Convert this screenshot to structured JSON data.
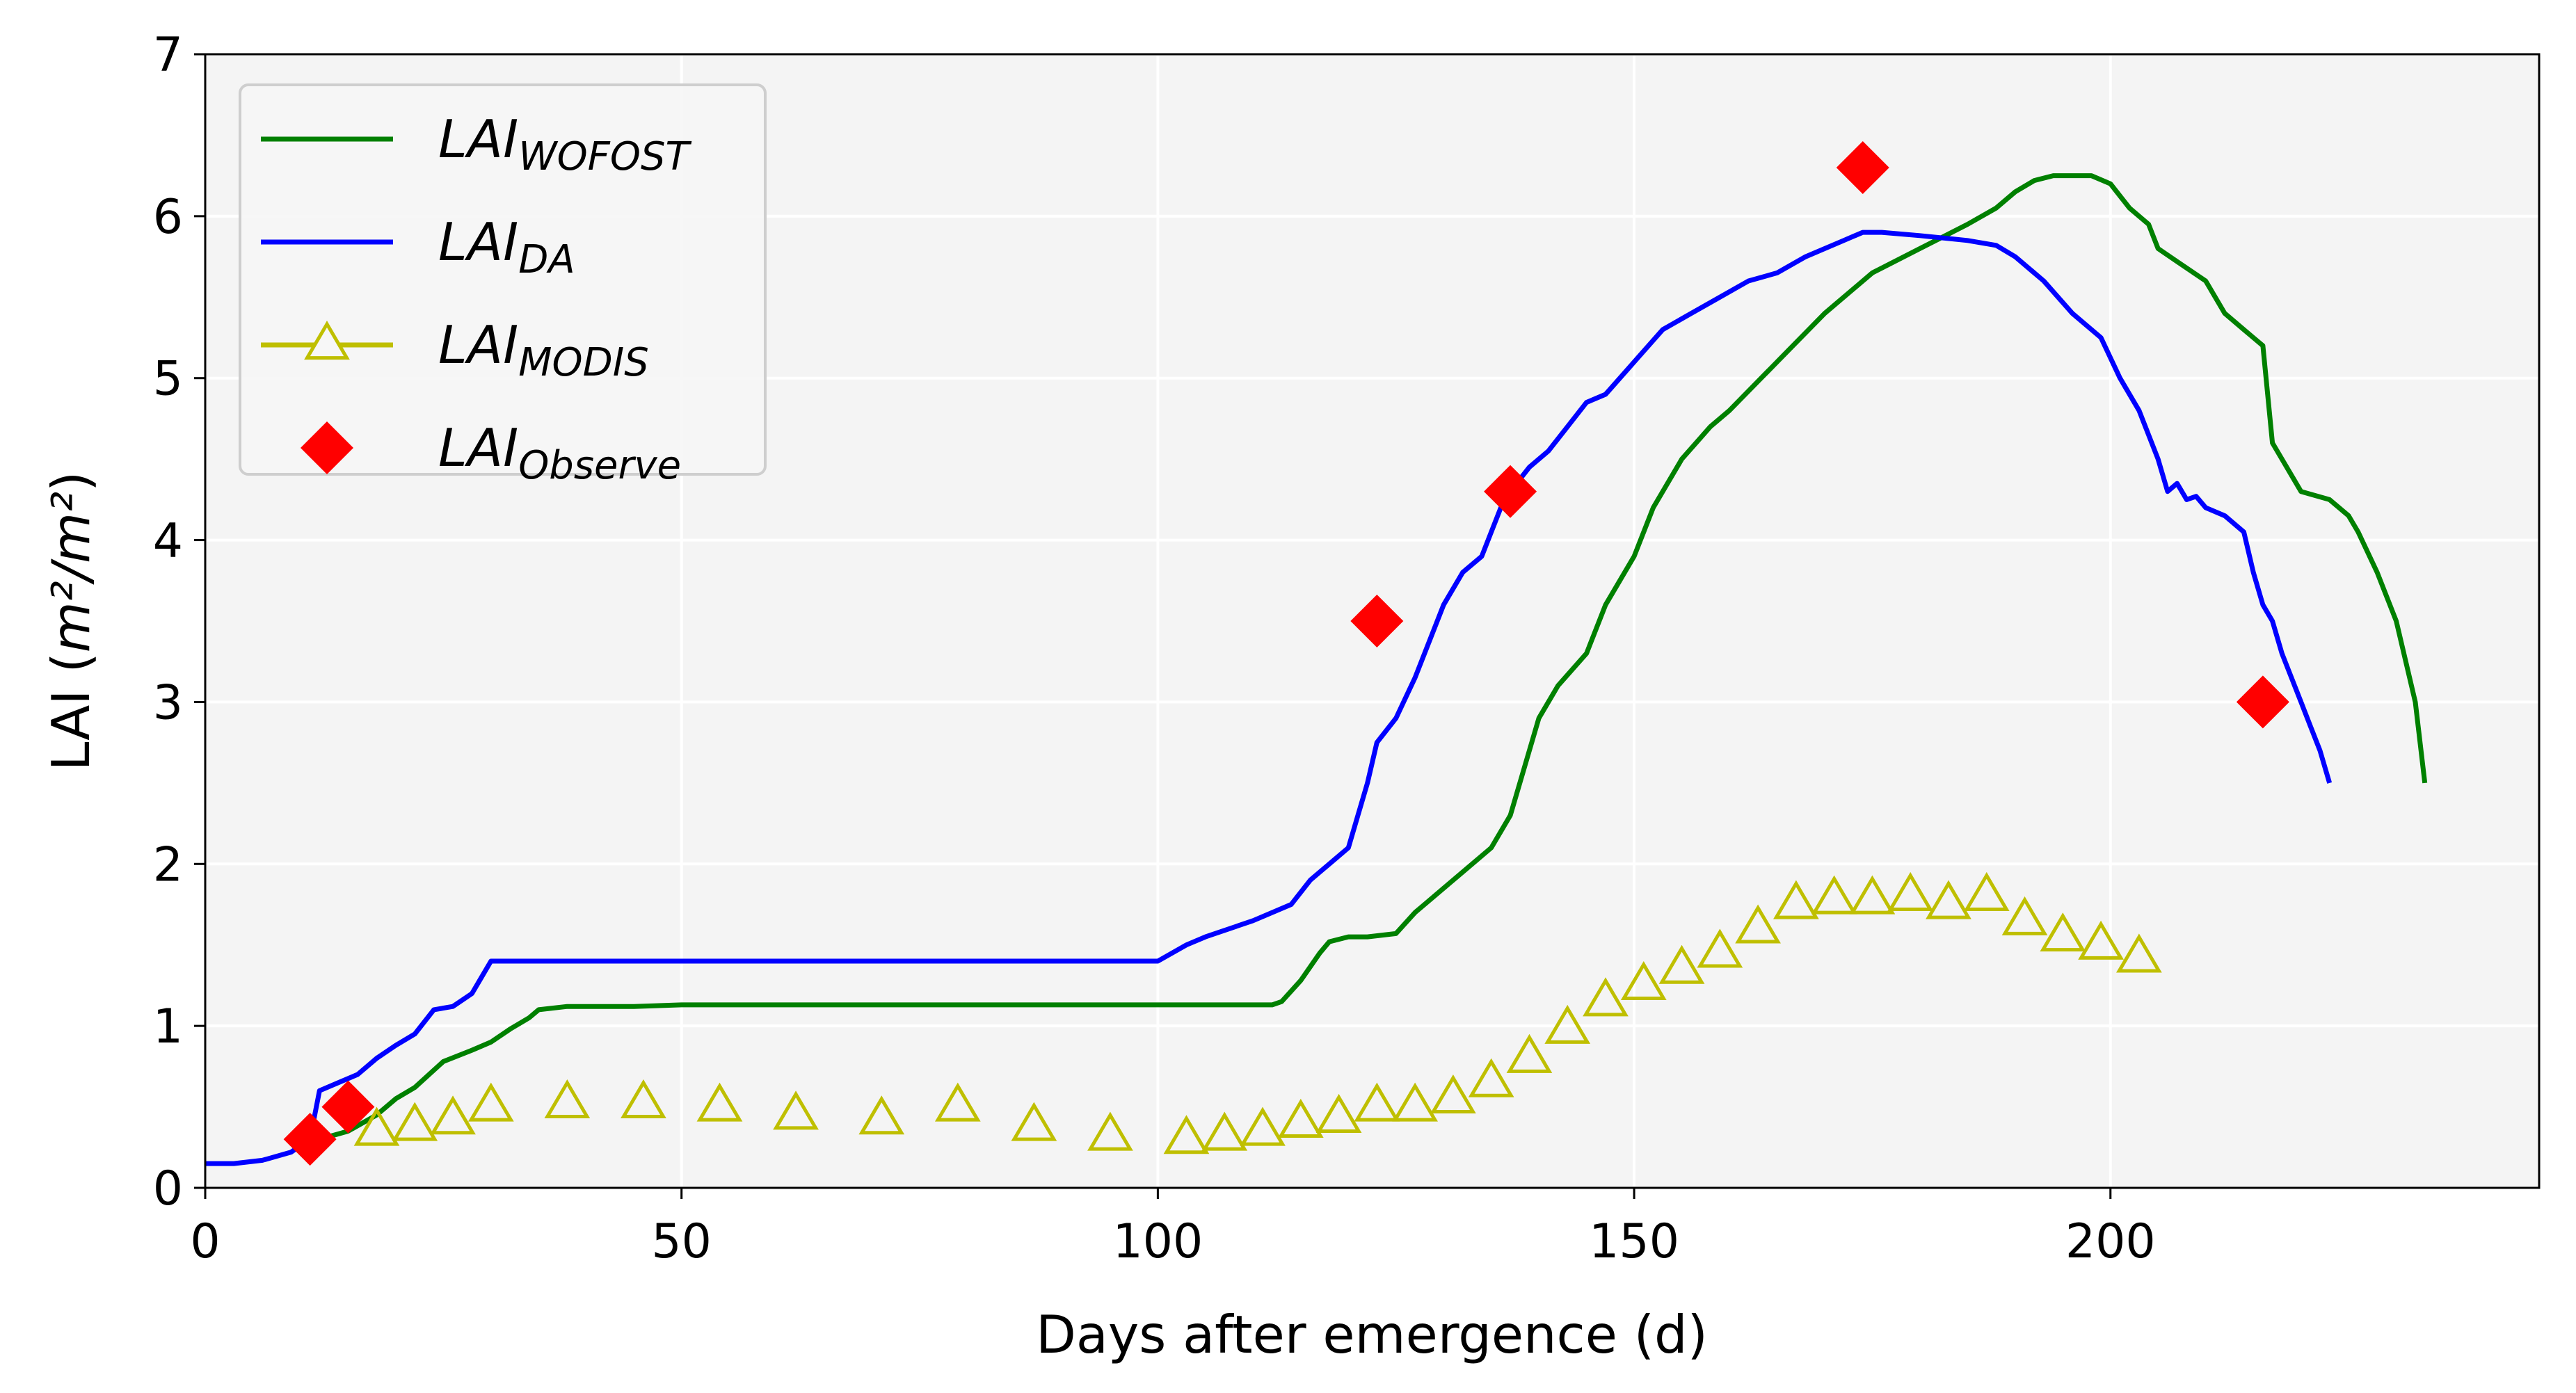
{
  "chart_data": {
    "type": "line",
    "title": "",
    "xlabel": "Days after emergence (d)",
    "ylabel_main": "LAI (",
    "ylabel_unit": "m²/m²",
    "ylabel_close": ")",
    "xlim": [
      0,
      245
    ],
    "ylim": [
      0,
      7
    ],
    "xticks": [
      0,
      50,
      100,
      150,
      200
    ],
    "yticks": [
      0,
      1,
      2,
      3,
      4,
      5,
      6,
      7
    ],
    "grid": true,
    "legend_position": "top-left",
    "series": [
      {
        "name": "LAI_WOFOST",
        "label_main": "LAI",
        "label_sub": "WOFOST",
        "style": "line",
        "color": "#008000",
        "x": [
          10,
          12,
          15,
          18,
          20,
          22,
          25,
          28,
          30,
          32,
          34,
          35,
          38,
          40,
          45,
          50,
          60,
          80,
          100,
          112,
          113,
          115,
          117,
          118,
          120,
          122,
          125,
          127,
          128,
          130,
          132,
          135,
          137,
          140,
          142,
          145,
          147,
          150,
          152,
          155,
          158,
          160,
          165,
          170,
          175,
          180,
          185,
          188,
          190,
          192,
          194,
          196,
          198,
          200,
          202,
          204,
          205,
          207,
          210,
          212,
          214,
          215,
          216,
          217,
          218,
          220,
          223,
          225,
          226,
          228,
          230,
          232,
          233
        ],
        "y": [
          0.25,
          0.3,
          0.35,
          0.45,
          0.55,
          0.62,
          0.78,
          0.85,
          0.9,
          0.98,
          1.05,
          1.1,
          1.12,
          1.12,
          1.12,
          1.13,
          1.13,
          1.13,
          1.13,
          1.13,
          1.15,
          1.28,
          1.45,
          1.52,
          1.55,
          1.55,
          1.57,
          1.7,
          1.75,
          1.85,
          1.95,
          2.1,
          2.3,
          2.9,
          3.1,
          3.3,
          3.6,
          3.9,
          4.2,
          4.5,
          4.7,
          4.8,
          5.1,
          5.4,
          5.65,
          5.8,
          5.95,
          6.05,
          6.15,
          6.22,
          6.25,
          6.25,
          6.25,
          6.2,
          6.05,
          5.95,
          5.8,
          5.72,
          5.6,
          5.4,
          5.3,
          5.25,
          5.2,
          4.6,
          4.5,
          4.3,
          4.25,
          4.15,
          4.05,
          3.8,
          3.5,
          3.0,
          2.5
        ]
      },
      {
        "name": "LAI_DA",
        "label_main": "LAI",
        "label_sub": "DA",
        "style": "line",
        "color": "#0000ff",
        "x": [
          0,
          3,
          6,
          9,
          11,
          12,
          14,
          16,
          18,
          20,
          22,
          24,
          26,
          28,
          29,
          30,
          31,
          40,
          60,
          80,
          100,
          103,
          105,
          110,
          114,
          116,
          118,
          120,
          121,
          122,
          123,
          125,
          127,
          130,
          132,
          134,
          136,
          137,
          139,
          141,
          143,
          145,
          147,
          150,
          153,
          156,
          159,
          162,
          165,
          168,
          172,
          174,
          176,
          180,
          185,
          188,
          190,
          193,
          196,
          199,
          201,
          203,
          205,
          206,
          207,
          208,
          209,
          210,
          212,
          214,
          215,
          216,
          217,
          218,
          219,
          220,
          221,
          222,
          223
        ],
        "y": [
          0.15,
          0.15,
          0.17,
          0.22,
          0.3,
          0.6,
          0.65,
          0.7,
          0.8,
          0.88,
          0.95,
          1.1,
          1.12,
          1.2,
          1.3,
          1.4,
          1.4,
          1.4,
          1.4,
          1.4,
          1.4,
          1.5,
          1.55,
          1.65,
          1.75,
          1.9,
          2.0,
          2.1,
          2.3,
          2.5,
          2.75,
          2.9,
          3.15,
          3.6,
          3.8,
          3.9,
          4.2,
          4.3,
          4.45,
          4.55,
          4.7,
          4.85,
          4.9,
          5.1,
          5.3,
          5.4,
          5.5,
          5.6,
          5.65,
          5.75,
          5.85,
          5.9,
          5.9,
          5.88,
          5.85,
          5.82,
          5.75,
          5.6,
          5.4,
          5.25,
          5.0,
          4.8,
          4.5,
          4.3,
          4.35,
          4.25,
          4.27,
          4.2,
          4.15,
          4.05,
          3.8,
          3.6,
          3.5,
          3.3,
          3.15,
          3.0,
          2.85,
          2.7,
          2.5
        ]
      },
      {
        "name": "LAI_MODIS",
        "label_main": "LAI",
        "label_sub": "MODIS",
        "style": "line-triangle",
        "color": "#bfbf00",
        "x": [
          18,
          22,
          26,
          30,
          38,
          46,
          54,
          62,
          71,
          79,
          87,
          95,
          103,
          107,
          111,
          115,
          119,
          123,
          127,
          131,
          135,
          139,
          143,
          147,
          151,
          155,
          159,
          163,
          167,
          171,
          175,
          179,
          183,
          187,
          191,
          195,
          199,
          203
        ],
        "y": [
          0.35,
          0.38,
          0.42,
          0.5,
          0.52,
          0.52,
          0.5,
          0.45,
          0.42,
          0.5,
          0.38,
          0.32,
          0.3,
          0.32,
          0.35,
          0.4,
          0.43,
          0.5,
          0.5,
          0.55,
          0.65,
          0.8,
          0.98,
          1.15,
          1.25,
          1.35,
          1.45,
          1.6,
          1.75,
          1.78,
          1.78,
          1.8,
          1.75,
          1.8,
          1.65,
          1.55,
          1.5,
          1.42
        ]
      },
      {
        "name": "LAI_Observe",
        "label_main": "LAI",
        "label_sub": "Observe",
        "style": "diamond",
        "color": "#ff0000",
        "x": [
          11,
          15,
          123,
          137,
          174,
          216
        ],
        "y": [
          0.3,
          0.5,
          3.5,
          4.3,
          6.3,
          3.0
        ]
      }
    ]
  }
}
